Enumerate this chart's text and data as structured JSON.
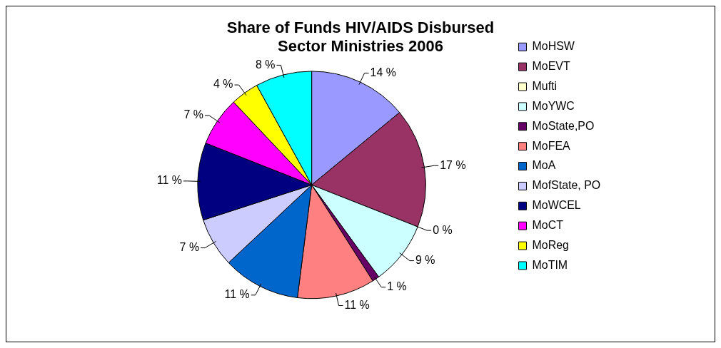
{
  "chart_data": {
    "type": "pie",
    "title": "Share of Funds HIV/AIDS Disbursed\nSector Ministries 2006",
    "categories": [
      "MoHSW",
      "MoEVT",
      "Mufti",
      "MoYWC",
      "MoState,PO",
      "MoFEA",
      "MoA",
      "MofState, PO",
      "MoWCEL",
      "MoCT",
      "MoReg",
      "MoTIM"
    ],
    "values": [
      14,
      17,
      0,
      9,
      1,
      11,
      11,
      7,
      11,
      7,
      4,
      8
    ],
    "value_labels": [
      "14 %",
      "17 %",
      "0 %",
      "9 %",
      "1 %",
      "11 %",
      "11 %",
      "7 %",
      "11 %",
      "7 %",
      "4 %",
      "8 %"
    ],
    "colors": [
      "#9999ff",
      "#993366",
      "#ffffcc",
      "#ccffff",
      "#660066",
      "#ff8080",
      "#0066cc",
      "#ccccff",
      "#000080",
      "#ff00ff",
      "#ffff00",
      "#00ffff"
    ],
    "legend": "right"
  }
}
